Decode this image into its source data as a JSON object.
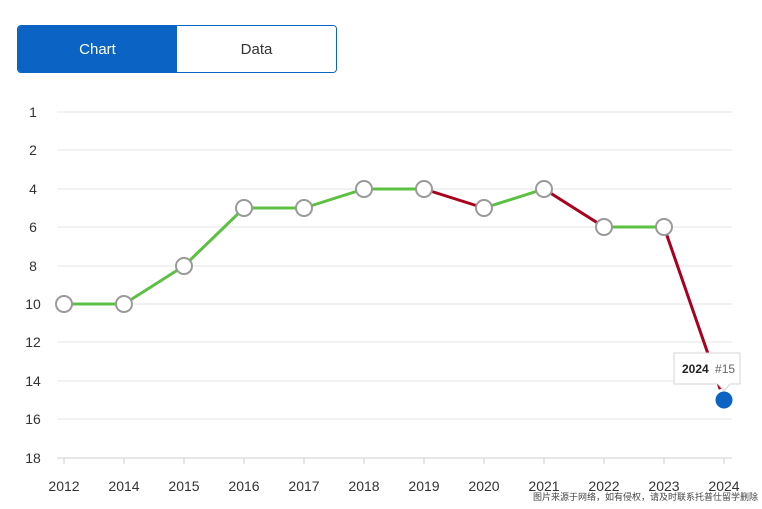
{
  "toggle": {
    "chart_label": "Chart",
    "data_label": "Data"
  },
  "colors": {
    "accent": "#0b63c4",
    "up": "#5cc142",
    "down": "#a8001e",
    "marker_stroke": "#999999",
    "grid": "#e6e6e6"
  },
  "tooltip": {
    "year": "2024",
    "rank": "#15"
  },
  "watermark": "图片来源于网络，如有侵权，请及时联系托普仕留学删除",
  "chart_data": {
    "type": "line",
    "x": [
      "2012",
      "2014",
      "2015",
      "2016",
      "2017",
      "2018",
      "2019",
      "2020",
      "2021",
      "2022",
      "2023",
      "2024"
    ],
    "values": [
      10,
      10,
      8,
      5,
      5,
      4,
      4,
      5,
      4,
      6,
      6,
      15
    ],
    "y_ticks": [
      1,
      2,
      4,
      6,
      8,
      10,
      12,
      14,
      16,
      18
    ],
    "y_inverted": true,
    "ylim": [
      1,
      18
    ],
    "grid": true,
    "highlighted_point": "2024",
    "title": "",
    "xlabel": "",
    "ylabel": ""
  }
}
